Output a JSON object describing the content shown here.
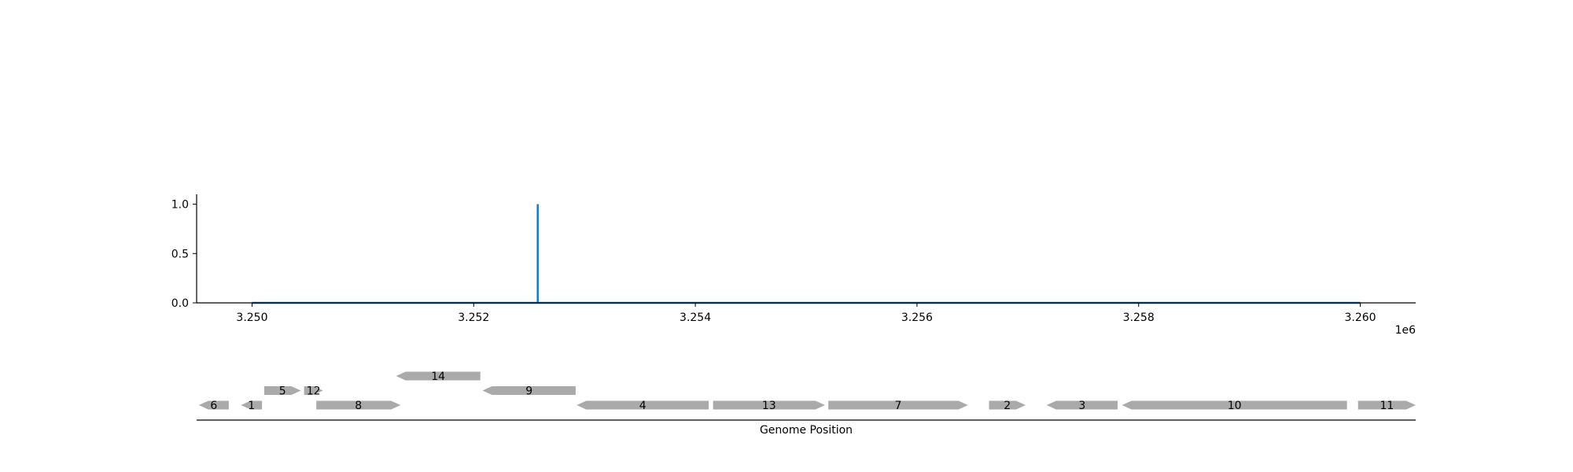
{
  "chart_data": [
    {
      "type": "line",
      "title": "",
      "xlabel": "",
      "ylabel": "",
      "x_offset_label": "1e6",
      "xlim": [
        3249500,
        3260500
      ],
      "ylim": [
        0,
        1.1
      ],
      "xticks": [
        3250000,
        3252000,
        3254000,
        3256000,
        3258000,
        3260000
      ],
      "xtick_labels": [
        "3.250",
        "3.252",
        "3.254",
        "3.256",
        "3.258",
        "3.260"
      ],
      "yticks": [
        0,
        0.5,
        1
      ],
      "ytick_labels": [
        "0.0",
        "0.5",
        "1.0"
      ],
      "grid": false,
      "series": [
        {
          "color": "#1f77b4",
          "x": [
            3250000,
            3252578,
            3252578,
            3252578,
            3260000
          ],
          "y": [
            0,
            0,
            1,
            0,
            0
          ]
        }
      ]
    },
    {
      "type": "gene_track",
      "xlabel": "Genome Position",
      "color": "#aaaaaa",
      "genes": [
        {
          "label": "6",
          "start": 3249520,
          "end": 3249790,
          "strand": -1,
          "row": 0
        },
        {
          "label": "1",
          "start": 3249900,
          "end": 3250090,
          "strand": -1,
          "row": 0
        },
        {
          "label": "5",
          "start": 3250110,
          "end": 3250440,
          "strand": 1,
          "row": 1
        },
        {
          "label": "12",
          "start": 3250470,
          "end": 3250640,
          "strand": 1,
          "row": 1
        },
        {
          "label": "8",
          "start": 3250580,
          "end": 3251340,
          "strand": 1,
          "row": 0
        },
        {
          "label": "14",
          "start": 3251300,
          "end": 3252060,
          "strand": -1,
          "row": 2
        },
        {
          "label": "9",
          "start": 3252080,
          "end": 3252920,
          "strand": -1,
          "row": 1
        },
        {
          "label": "4",
          "start": 3252930,
          "end": 3254120,
          "strand": -1,
          "row": 0
        },
        {
          "label": "13",
          "start": 3254160,
          "end": 3255170,
          "strand": 1,
          "row": 0
        },
        {
          "label": "7",
          "start": 3255200,
          "end": 3256460,
          "strand": 1,
          "row": 0
        },
        {
          "label": "2",
          "start": 3256650,
          "end": 3256980,
          "strand": 1,
          "row": 0
        },
        {
          "label": "3",
          "start": 3257170,
          "end": 3257810,
          "strand": -1,
          "row": 0
        },
        {
          "label": "10",
          "start": 3257850,
          "end": 3259880,
          "strand": -1,
          "row": 0
        },
        {
          "label": "11",
          "start": 3259980,
          "end": 3260500,
          "strand": 1,
          "row": 0
        }
      ]
    }
  ]
}
